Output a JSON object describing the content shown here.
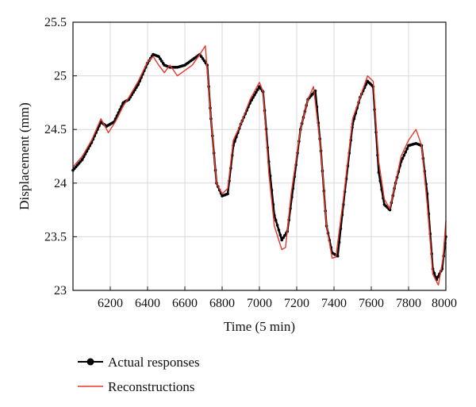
{
  "chart_data": {
    "type": "line",
    "xlabel": "Time (5 min)",
    "ylabel": "Displacement (mm)",
    "xlim": [
      6000,
      8000
    ],
    "ylim": [
      23,
      25.5
    ],
    "x_ticks": [
      6200,
      6400,
      6600,
      6800,
      7000,
      7200,
      7400,
      7600,
      7800,
      8000
    ],
    "y_ticks": [
      23,
      23.5,
      24,
      24.5,
      25,
      25.5
    ],
    "x_tick_labels": [
      "6200",
      "6400",
      "6600",
      "6800",
      "7000",
      "7200",
      "7400",
      "7600",
      "7800",
      "8000"
    ],
    "y_tick_labels": [
      "23",
      "23.5",
      "24",
      "24.5",
      "25",
      "25.5"
    ],
    "grid": true,
    "legend_position": "below",
    "series": [
      {
        "name": "Actual responses",
        "color": "#000000",
        "style": "line-with-markers",
        "x": [
          6000,
          6050,
          6100,
          6150,
          6180,
          6220,
          6270,
          6300,
          6350,
          6400,
          6430,
          6460,
          6490,
          6520,
          6560,
          6600,
          6640,
          6680,
          6720,
          6740,
          6770,
          6800,
          6830,
          6860,
          6900,
          6950,
          7000,
          7020,
          7050,
          7080,
          7120,
          7150,
          7180,
          7220,
          7260,
          7300,
          7330,
          7360,
          7390,
          7420,
          7450,
          7500,
          7540,
          7580,
          7610,
          7640,
          7670,
          7700,
          7730,
          7760,
          7800,
          7840,
          7870,
          7900,
          7930,
          7950,
          7980,
          8000
        ],
        "y": [
          24.12,
          24.22,
          24.38,
          24.57,
          24.53,
          24.57,
          24.75,
          24.78,
          24.92,
          25.12,
          25.2,
          25.18,
          25.1,
          25.08,
          25.08,
          25.1,
          25.15,
          25.2,
          25.1,
          24.6,
          24.0,
          23.88,
          23.9,
          24.35,
          24.55,
          24.75,
          24.9,
          24.85,
          24.2,
          23.7,
          23.47,
          23.55,
          23.95,
          24.5,
          24.78,
          24.86,
          24.3,
          23.6,
          23.35,
          23.32,
          23.8,
          24.55,
          24.8,
          24.95,
          24.9,
          24.1,
          23.8,
          23.75,
          24.0,
          24.2,
          24.35,
          24.37,
          24.35,
          23.9,
          23.2,
          23.1,
          23.2,
          23.5
        ]
      },
      {
        "name": "Reconstructions",
        "color": "#e8382a",
        "style": "line",
        "x": [
          6000,
          6050,
          6100,
          6150,
          6190,
          6230,
          6270,
          6300,
          6350,
          6400,
          6430,
          6460,
          6490,
          6520,
          6560,
          6600,
          6640,
          6680,
          6710,
          6740,
          6770,
          6800,
          6830,
          6860,
          6900,
          6950,
          7000,
          7020,
          7050,
          7080,
          7120,
          7140,
          7170,
          7220,
          7260,
          7290,
          7330,
          7360,
          7390,
          7410,
          7450,
          7500,
          7540,
          7580,
          7610,
          7640,
          7670,
          7700,
          7730,
          7760,
          7800,
          7840,
          7870,
          7900,
          7930,
          7960,
          7985,
          8000
        ],
        "y": [
          24.15,
          24.25,
          24.4,
          24.6,
          24.47,
          24.58,
          24.72,
          24.8,
          24.95,
          25.13,
          25.18,
          25.1,
          25.03,
          25.1,
          25.0,
          25.05,
          25.1,
          25.2,
          25.28,
          24.6,
          24.0,
          23.9,
          23.95,
          24.4,
          24.55,
          24.78,
          24.94,
          24.85,
          24.1,
          23.6,
          23.38,
          23.4,
          23.9,
          24.5,
          24.78,
          24.9,
          24.3,
          23.6,
          23.3,
          23.31,
          23.85,
          24.6,
          24.8,
          25.0,
          24.95,
          24.2,
          23.85,
          23.76,
          24.0,
          24.25,
          24.4,
          24.5,
          24.35,
          23.8,
          23.15,
          23.05,
          23.3,
          23.65
        ]
      }
    ]
  }
}
